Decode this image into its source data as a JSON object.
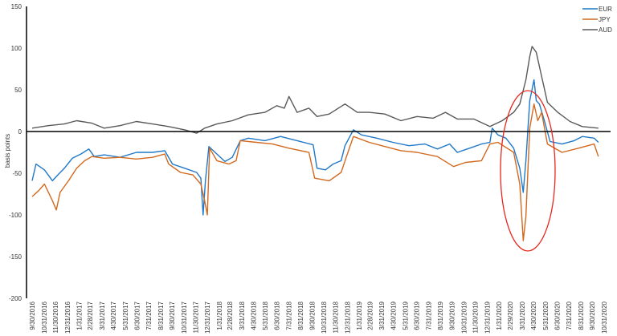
{
  "chart_data": {
    "type": "line",
    "title": "",
    "xlabel": "",
    "ylabel": "basis points",
    "ylim": [
      -200,
      150
    ],
    "yticks": [
      150,
      100,
      50,
      0,
      -50,
      -100,
      -150,
      -200
    ],
    "xlim": [
      "2016-09-30",
      "2020-10-31"
    ],
    "xtick_labels": [
      "9/30/2016",
      "10/31/2016",
      "11/30/2016",
      "12/31/2016",
      "1/31/2017",
      "2/28/2017",
      "3/31/2017",
      "4/30/2017",
      "5/31/2017",
      "6/30/2017",
      "7/31/2017",
      "8/31/2017",
      "9/30/2017",
      "10/31/2017",
      "11/30/2017",
      "12/31/2017",
      "1/31/2018",
      "2/28/2018",
      "3/31/2018",
      "4/30/2018",
      "5/31/2018",
      "6/30/2018",
      "7/31/2018",
      "8/31/2018",
      "9/30/2018",
      "10/31/2018",
      "11/30/2018",
      "12/31/2018",
      "1/31/2019",
      "2/28/2019",
      "3/31/2019",
      "4/30/2019",
      "5/31/2019",
      "6/30/2019",
      "7/31/2019",
      "8/31/2019",
      "9/30/2019",
      "10/31/2019",
      "11/30/2019",
      "12/31/2019",
      "1/31/2020",
      "2/29/2020",
      "3/31/2020",
      "4/30/2020",
      "5/31/2020",
      "6/30/2020",
      "7/31/2020",
      "8/31/2020",
      "9/30/2020",
      "10/31/2020"
    ],
    "grid": false,
    "legend": "top-right",
    "annotation": "red ellipse around the spring 2020 spike",
    "series": [
      {
        "name": "EUR",
        "color": "#1f78c8",
        "points": [
          [
            "2016-09-30",
            -59
          ],
          [
            "2016-10-10",
            -39
          ],
          [
            "2016-11-01",
            -46
          ],
          [
            "2016-11-22",
            -59
          ],
          [
            "2016-12-06",
            -52
          ],
          [
            "2016-12-23",
            -44
          ],
          [
            "2017-01-13",
            -32
          ],
          [
            "2017-02-04",
            -27
          ],
          [
            "2017-02-25",
            -21
          ],
          [
            "2017-03-11",
            -30
          ],
          [
            "2017-04-06",
            -28
          ],
          [
            "2017-05-17",
            -31
          ],
          [
            "2017-06-29",
            -25
          ],
          [
            "2017-08-10",
            -25
          ],
          [
            "2017-09-11",
            -23
          ],
          [
            "2017-10-01",
            -39
          ],
          [
            "2017-11-02",
            -44
          ],
          [
            "2017-12-03",
            -49
          ],
          [
            "2017-12-14",
            -56
          ],
          [
            "2017-12-20",
            -100
          ],
          [
            "2017-12-26",
            -59
          ],
          [
            "2018-01-04",
            -18
          ],
          [
            "2018-01-25",
            -27
          ],
          [
            "2018-02-15",
            -36
          ],
          [
            "2018-03-06",
            -31
          ],
          [
            "2018-03-27",
            -11
          ],
          [
            "2018-04-17",
            -8
          ],
          [
            "2018-05-30",
            -11
          ],
          [
            "2018-07-10",
            -6
          ],
          [
            "2018-08-22",
            -11
          ],
          [
            "2018-10-03",
            -16
          ],
          [
            "2018-10-13",
            -44
          ],
          [
            "2018-11-04",
            -46
          ],
          [
            "2018-11-24",
            -39
          ],
          [
            "2018-12-15",
            -35
          ],
          [
            "2018-12-25",
            -17
          ],
          [
            "2019-01-16",
            2
          ],
          [
            "2019-02-06",
            -4
          ],
          [
            "2019-03-18",
            -8
          ],
          [
            "2019-04-29",
            -13
          ],
          [
            "2019-06-10",
            -17
          ],
          [
            "2019-07-22",
            -15
          ],
          [
            "2019-08-23",
            -21
          ],
          [
            "2019-09-24",
            -15
          ],
          [
            "2019-10-14",
            -25
          ],
          [
            "2019-11-15",
            -20
          ],
          [
            "2019-12-16",
            -15
          ],
          [
            "2020-01-07",
            -13
          ],
          [
            "2020-01-13",
            4
          ],
          [
            "2020-01-28",
            -4
          ],
          [
            "2020-02-18",
            -8
          ],
          [
            "2020-03-09",
            -20
          ],
          [
            "2020-03-25",
            -44
          ],
          [
            "2020-04-03",
            -73
          ],
          [
            "2020-04-10",
            -35
          ],
          [
            "2020-04-20",
            37
          ],
          [
            "2020-05-01",
            62
          ],
          [
            "2020-05-07",
            37
          ],
          [
            "2020-05-15",
            33
          ],
          [
            "2020-05-28",
            13
          ],
          [
            "2020-06-12",
            -12
          ],
          [
            "2020-07-13",
            -15
          ],
          [
            "2020-08-14",
            -11
          ],
          [
            "2020-09-04",
            -6
          ],
          [
            "2020-10-05",
            -8
          ],
          [
            "2020-10-16",
            -13
          ]
        ]
      },
      {
        "name": "JPY",
        "color": "#d2691e",
        "points": [
          [
            "2016-09-30",
            -78
          ],
          [
            "2016-10-17",
            -71
          ],
          [
            "2016-11-01",
            -63
          ],
          [
            "2016-11-22",
            -83
          ],
          [
            "2016-12-02",
            -94
          ],
          [
            "2016-12-12",
            -73
          ],
          [
            "2017-01-03",
            -59
          ],
          [
            "2017-01-24",
            -44
          ],
          [
            "2017-02-14",
            -35
          ],
          [
            "2017-03-05",
            -30
          ],
          [
            "2017-04-06",
            -32
          ],
          [
            "2017-05-17",
            -31
          ],
          [
            "2017-06-29",
            -33
          ],
          [
            "2017-08-10",
            -31
          ],
          [
            "2017-09-11",
            -27
          ],
          [
            "2017-09-21",
            -39
          ],
          [
            "2017-10-22",
            -49
          ],
          [
            "2017-11-23",
            -52
          ],
          [
            "2017-12-14",
            -63
          ],
          [
            "2017-12-24",
            -83
          ],
          [
            "2017-12-31",
            -100
          ],
          [
            "2018-01-06",
            -20
          ],
          [
            "2018-01-25",
            -35
          ],
          [
            "2018-02-25",
            -39
          ],
          [
            "2018-03-16",
            -35
          ],
          [
            "2018-03-27",
            -11
          ],
          [
            "2018-05-08",
            -13
          ],
          [
            "2018-06-19",
            -15
          ],
          [
            "2018-08-01",
            -20
          ],
          [
            "2018-09-22",
            -25
          ],
          [
            "2018-10-07",
            -56
          ],
          [
            "2018-11-14",
            -59
          ],
          [
            "2018-12-15",
            -49
          ],
          [
            "2018-12-29",
            -30
          ],
          [
            "2019-01-16",
            -6
          ],
          [
            "2019-02-26",
            -13
          ],
          [
            "2019-04-08",
            -18
          ],
          [
            "2019-05-20",
            -23
          ],
          [
            "2019-07-01",
            -25
          ],
          [
            "2019-08-23",
            -30
          ],
          [
            "2019-10-04",
            -42
          ],
          [
            "2019-11-05",
            -37
          ],
          [
            "2019-12-16",
            -35
          ],
          [
            "2020-01-07",
            -15
          ],
          [
            "2020-01-28",
            -13
          ],
          [
            "2020-03-09",
            -25
          ],
          [
            "2020-03-25",
            -63
          ],
          [
            "2020-04-03",
            -131
          ],
          [
            "2020-04-10",
            -102
          ],
          [
            "2020-04-20",
            4
          ],
          [
            "2020-05-01",
            33
          ],
          [
            "2020-05-11",
            13
          ],
          [
            "2020-05-21",
            23
          ],
          [
            "2020-06-05",
            -15
          ],
          [
            "2020-07-13",
            -25
          ],
          [
            "2020-08-25",
            -20
          ],
          [
            "2020-10-05",
            -15
          ],
          [
            "2020-10-16",
            -30
          ]
        ]
      },
      {
        "name": "AUD",
        "color": "#595959",
        "points": [
          [
            "2016-09-30",
            4
          ],
          [
            "2016-11-11",
            7
          ],
          [
            "2016-12-23",
            9
          ],
          [
            "2017-01-24",
            13
          ],
          [
            "2017-03-05",
            10
          ],
          [
            "2017-04-06",
            4
          ],
          [
            "2017-05-17",
            7
          ],
          [
            "2017-06-29",
            12
          ],
          [
            "2017-08-10",
            9
          ],
          [
            "2017-09-21",
            6
          ],
          [
            "2017-11-02",
            2
          ],
          [
            "2017-12-03",
            -2
          ],
          [
            "2017-12-24",
            4
          ],
          [
            "2018-01-25",
            9
          ],
          [
            "2018-03-06",
            13
          ],
          [
            "2018-04-17",
            20
          ],
          [
            "2018-05-30",
            23
          ],
          [
            "2018-06-30",
            31
          ],
          [
            "2018-07-20",
            28
          ],
          [
            "2018-08-01",
            42
          ],
          [
            "2018-08-22",
            23
          ],
          [
            "2018-09-22",
            28
          ],
          [
            "2018-10-13",
            18
          ],
          [
            "2018-11-14",
            21
          ],
          [
            "2018-12-25",
            33
          ],
          [
            "2019-01-26",
            23
          ],
          [
            "2019-02-26",
            23
          ],
          [
            "2019-04-08",
            21
          ],
          [
            "2019-05-20",
            13
          ],
          [
            "2019-07-01",
            18
          ],
          [
            "2019-08-12",
            16
          ],
          [
            "2019-09-13",
            23
          ],
          [
            "2019-10-14",
            15
          ],
          [
            "2019-11-26",
            15
          ],
          [
            "2020-01-07",
            6
          ],
          [
            "2020-02-08",
            13
          ],
          [
            "2020-03-09",
            23
          ],
          [
            "2020-03-25",
            33
          ],
          [
            "2020-04-10",
            62
          ],
          [
            "2020-04-20",
            90
          ],
          [
            "2020-04-26",
            102
          ],
          [
            "2020-05-07",
            95
          ],
          [
            "2020-05-21",
            66
          ],
          [
            "2020-06-05",
            35
          ],
          [
            "2020-07-02",
            23
          ],
          [
            "2020-08-03",
            12
          ],
          [
            "2020-09-04",
            6
          ],
          [
            "2020-10-16",
            4
          ]
        ]
      }
    ]
  }
}
